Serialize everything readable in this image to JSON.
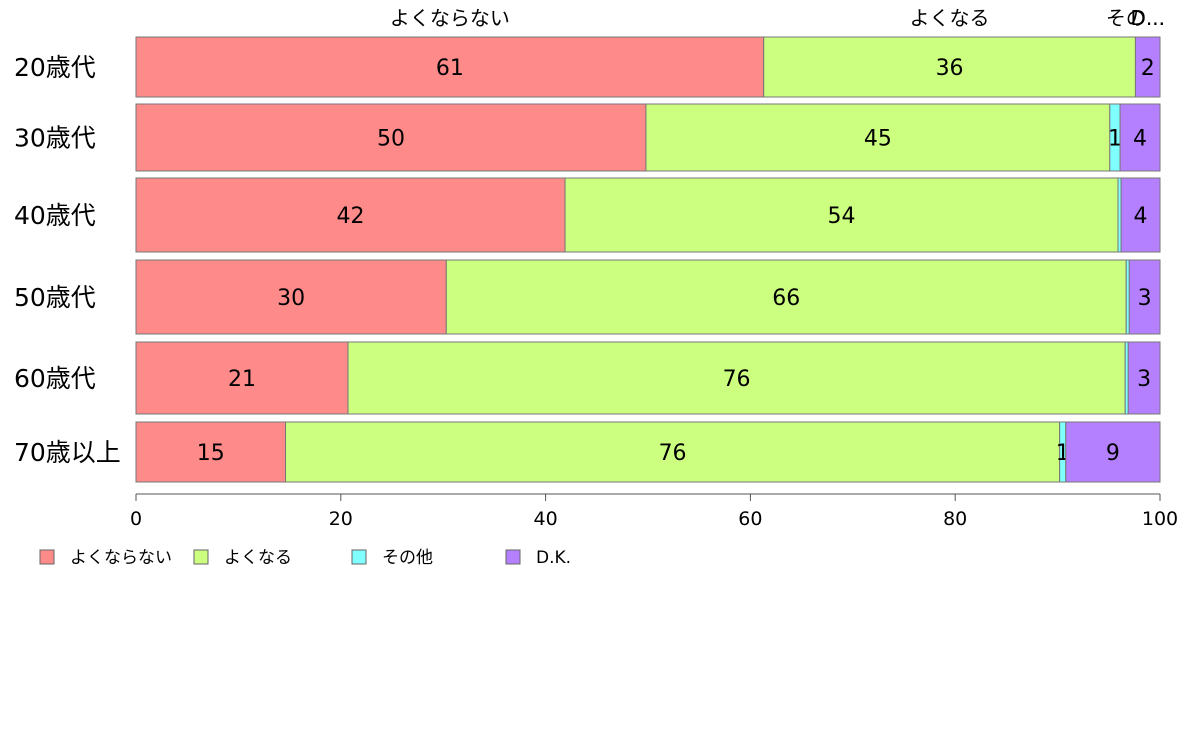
{
  "chart_data": {
    "type": "bar",
    "orientation": "horizontal",
    "stacked": true,
    "categories": [
      "20歳代",
      "30歳代",
      "40歳代",
      "50歳代",
      "60歳代",
      "70歳以上"
    ],
    "series": [
      {
        "name": "よくならない",
        "color": "#ff8a8a",
        "values": [
          61.3,
          49.8,
          41.9,
          30.3,
          20.7,
          14.6
        ]
      },
      {
        "name": "よくなる",
        "color": "#ccff80",
        "values": [
          36.3,
          45.3,
          54.0,
          66.4,
          75.9,
          75.6
        ]
      },
      {
        "name": "その他",
        "color": "#80ffff",
        "values": [
          0.0,
          1.0,
          0.3,
          0.3,
          0.3,
          0.6
        ]
      },
      {
        "name": "D.K.",
        "color": "#b580ff",
        "values": [
          2.4,
          3.9,
          3.8,
          3.0,
          3.1,
          9.2
        ]
      }
    ],
    "value_labels": [
      [
        "61",
        "36",
        "",
        "2"
      ],
      [
        "50",
        "45",
        "1",
        "4"
      ],
      [
        "42",
        "54",
        "",
        "4"
      ],
      [
        "30",
        "66",
        "",
        "3"
      ],
      [
        "21",
        "76",
        "",
        "3"
      ],
      [
        "15",
        "76",
        "1",
        "9"
      ]
    ],
    "top_labels": [
      "よくならない",
      "よくなる",
      "その...",
      "D..."
    ],
    "xlim": [
      0,
      100
    ],
    "xticks": [
      "0",
      "20",
      "40",
      "60",
      "80",
      "100"
    ],
    "legend": {
      "position": "bottom-left",
      "items": [
        "よくならない",
        "よくなる",
        "その他",
        "D.K."
      ]
    },
    "grid": false
  }
}
